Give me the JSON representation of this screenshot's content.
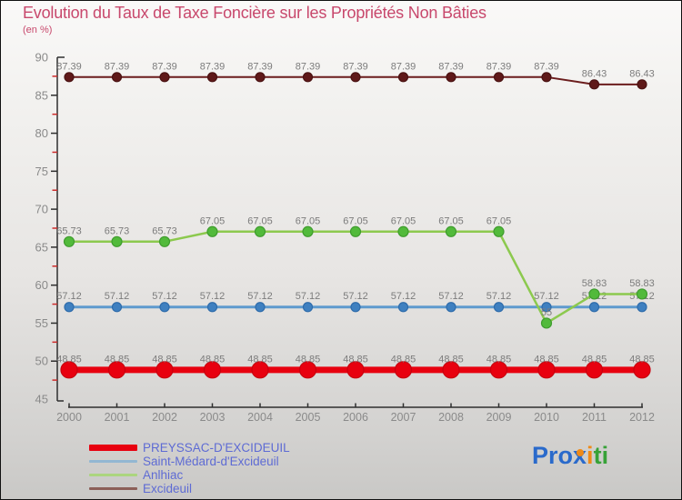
{
  "chart_data": {
    "type": "line",
    "title": "Evolution du Taux de Taxe Foncière sur les Propriétés Non Bâties",
    "subtitle": "(en %)",
    "x": [
      2000,
      2001,
      2002,
      2003,
      2004,
      2005,
      2006,
      2007,
      2008,
      2009,
      2010,
      2011,
      2012
    ],
    "series": [
      {
        "name": "PREYSSAC-D'EXCIDEUIL",
        "line_color": "#e8000f",
        "dot_color": "#e8000f",
        "dot_stroke": "#c9000e",
        "legend_color": "#e8000f",
        "line_width": 7,
        "dot_radius": 9,
        "values": [
          48.85,
          48.85,
          48.85,
          48.85,
          48.85,
          48.85,
          48.85,
          48.85,
          48.85,
          48.85,
          48.85,
          48.85,
          48.85
        ]
      },
      {
        "name": "Saint-Médard-d'Excideuil",
        "line_color": "#5e9ace",
        "dot_color": "#3f80c0",
        "dot_stroke": "#2f6cab",
        "legend_color": "#93b7d2",
        "line_width": 3,
        "dot_radius": 5,
        "values": [
          57.12,
          57.12,
          57.12,
          57.12,
          57.12,
          57.12,
          57.12,
          57.12,
          57.12,
          57.12,
          57.12,
          57.12,
          57.12
        ]
      },
      {
        "name": "Anlhiac",
        "line_color": "#8cc94e",
        "dot_color": "#52ba3b",
        "dot_stroke": "#3f9c2e",
        "legend_color": "#abd57e",
        "line_width": 2.5,
        "dot_radius": 5.5,
        "values": [
          65.73,
          65.73,
          65.73,
          67.05,
          67.05,
          67.05,
          67.05,
          67.05,
          67.05,
          67.05,
          55,
          58.83,
          58.83
        ]
      },
      {
        "name": "Excideuil",
        "line_color": "#6b1d1d",
        "dot_color": "#5f1919",
        "dot_stroke": "#4a1212",
        "legend_color": "#8c5f58",
        "line_width": 2,
        "dot_radius": 5,
        "values": [
          87.39,
          87.39,
          87.39,
          87.39,
          87.39,
          87.39,
          87.39,
          87.39,
          87.39,
          87.39,
          87.39,
          86.43,
          86.43
        ]
      }
    ],
    "render_order": [
      3,
      1,
      2,
      0
    ],
    "ylim": [
      45,
      90
    ],
    "ytick_step": 5,
    "yminor_step": 2.5,
    "grid": false,
    "legend_position": "bottom-left",
    "colors": {
      "axis": "#2e2e2e",
      "minor_tick": "#cc2a2a",
      "tick_label": "#8a8a8a",
      "point_label": "#7c7c7c",
      "title": "#c8486c",
      "legend_text": "#5e6bd4"
    }
  },
  "logo": {
    "name": "Proxiti",
    "parts": [
      {
        "text": "Pro",
        "color": "#2a6acb",
        "part_name": "logo-text-pro"
      },
      {
        "text": "x",
        "color": "#2a6acb",
        "accent": "#f08a17",
        "part_name": "logo-x-glyph"
      },
      {
        "text": "i",
        "color": "#f08a17",
        "part_name": "logo-text-i1"
      },
      {
        "text": "t",
        "color": "#38a238",
        "part_name": "logo-text-t"
      },
      {
        "text": "i",
        "color": "#38a238",
        "part_name": "logo-text-i2"
      }
    ]
  }
}
